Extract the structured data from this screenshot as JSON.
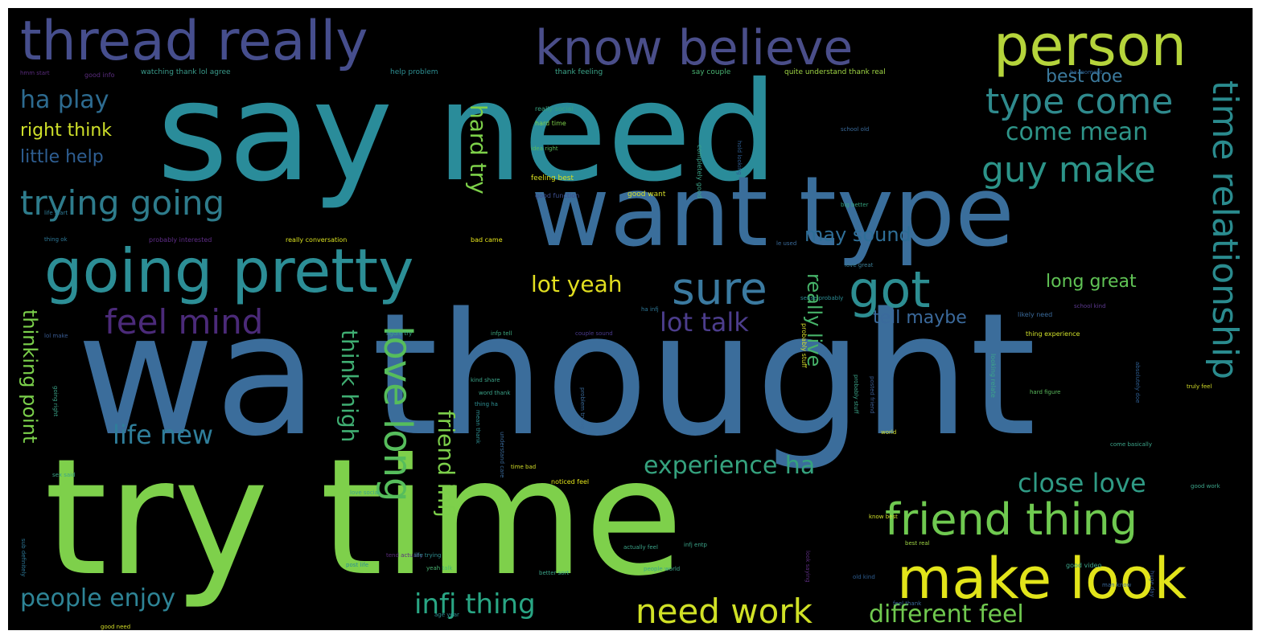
{
  "words": [
    {
      "text": "wa thought",
      "color": "#3b6d9b"
    },
    {
      "text": "try time",
      "color": "#7ed04b"
    },
    {
      "text": "say need",
      "color": "#2a8c9a"
    },
    {
      "text": "want type",
      "color": "#3a6e9b"
    },
    {
      "text": "thread really",
      "color": "#464e8d"
    },
    {
      "text": "know believe",
      "color": "#4a4e8a"
    },
    {
      "text": "person",
      "color": "#b5d43b"
    },
    {
      "text": "going pretty",
      "color": "#2c8e96"
    },
    {
      "text": "friend thing",
      "color": "#6fc950"
    },
    {
      "text": "make look",
      "color": "#e2e41a"
    },
    {
      "text": "trying going",
      "color": "#2e7c8c"
    },
    {
      "text": "sure",
      "color": "#3b7aa0"
    },
    {
      "text": "got",
      "color": "#2d8e92"
    },
    {
      "text": "feel mind",
      "color": "#4b2a79"
    },
    {
      "text": "type come",
      "color": "#2f8a8d"
    },
    {
      "text": "guy make",
      "color": "#2c9489"
    },
    {
      "text": "time relationship",
      "color": "#2a8b8e"
    },
    {
      "text": "love long",
      "color": "#56bd5c"
    },
    {
      "text": "life new",
      "color": "#2f7e9a"
    },
    {
      "text": "experience ha",
      "color": "#35a27e"
    },
    {
      "text": "close love",
      "color": "#2f9b85"
    },
    {
      "text": "need work",
      "color": "#d0e126"
    },
    {
      "text": "infj thing",
      "color": "#29a684"
    },
    {
      "text": "people enjoy",
      "color": "#2e8496"
    },
    {
      "text": "different feel",
      "color": "#70c94f"
    },
    {
      "text": "ha play",
      "color": "#2d6b90"
    },
    {
      "text": "right think",
      "color": "#cfe02a"
    },
    {
      "text": "little help",
      "color": "#2e5e92"
    },
    {
      "text": "come mean",
      "color": "#2e9488"
    },
    {
      "text": "best doe",
      "color": "#3c7a9d"
    },
    {
      "text": "lot talk",
      "color": "#4c3d8c"
    },
    {
      "text": "lot yeah",
      "color": "#e2df20"
    },
    {
      "text": "tell maybe",
      "color": "#3b6a9c"
    },
    {
      "text": "long great",
      "color": "#60c355"
    },
    {
      "text": "may sound",
      "color": "#2f6f98"
    },
    {
      "text": "think high",
      "color": "#3fae72"
    },
    {
      "text": "friend infj",
      "color": "#7ccf4a"
    },
    {
      "text": "hard try",
      "color": "#7dd049"
    },
    {
      "text": "really live",
      "color": "#46b369"
    },
    {
      "text": "thinking point",
      "color": "#7bd04b"
    },
    {
      "text": "watching thank lol agree",
      "color": "#3a9b8b"
    },
    {
      "text": "help problem",
      "color": "#2e8f92"
    },
    {
      "text": "thank feeling",
      "color": "#3ca58a"
    },
    {
      "text": "say couple",
      "color": "#49b372"
    },
    {
      "text": "quite understand thank real",
      "color": "#9ed444"
    },
    {
      "text": "good info",
      "color": "#5a2c7e"
    },
    {
      "text": "ha moment",
      "color": "#2c5d90"
    },
    {
      "text": "really social",
      "color": "#36a07e"
    },
    {
      "text": "hard time",
      "color": "#7ccf4a"
    },
    {
      "text": "idea right",
      "color": "#5ab95c"
    },
    {
      "text": "school old",
      "color": "#3a6a9a"
    },
    {
      "text": "feeling best",
      "color": "#d9e020"
    },
    {
      "text": "good function",
      "color": "#3d4f8f"
    },
    {
      "text": "good want",
      "color": "#d5df29"
    },
    {
      "text": "big better",
      "color": "#35a27e"
    },
    {
      "text": "probably interested",
      "color": "#5f2d88"
    },
    {
      "text": "really conversation",
      "color": "#d9e020"
    },
    {
      "text": "bad came",
      "color": "#e6e51c"
    },
    {
      "text": "le used",
      "color": "#3a6a9a"
    },
    {
      "text": "love great",
      "color": "#3c7f96"
    },
    {
      "text": "sense probably",
      "color": "#2c8e96"
    },
    {
      "text": "ha infj",
      "color": "#2f7a9a"
    },
    {
      "text": "school kind",
      "color": "#5d3a91"
    },
    {
      "text": "likely need",
      "color": "#3a6a9a"
    },
    {
      "text": "thing experience",
      "color": "#cfe02a"
    },
    {
      "text": "figure try",
      "color": "#3ca58a"
    },
    {
      "text": "infp tell",
      "color": "#3da67e"
    },
    {
      "text": "couple sound",
      "color": "#4a3a8c"
    },
    {
      "text": "lol make",
      "color": "#3a5c93"
    },
    {
      "text": "probably stuff",
      "color": "#d5df29"
    },
    {
      "text": "thing ok",
      "color": "#2e7a9a"
    },
    {
      "text": "life start",
      "color": "#2f7e9a"
    },
    {
      "text": "kind share",
      "color": "#3ca58a"
    },
    {
      "text": "word thank",
      "color": "#3ca58a"
    },
    {
      "text": "thing ha",
      "color": "#2e8f92"
    },
    {
      "text": "mean thank",
      "color": "#2e8f92"
    },
    {
      "text": "problem trying",
      "color": "#3a6a9a"
    },
    {
      "text": "posted friend",
      "color": "#3a5c93"
    },
    {
      "text": "looking relate",
      "color": "#3ca58a"
    },
    {
      "text": "hard figure",
      "color": "#5ab95c"
    },
    {
      "text": "absolutely doe",
      "color": "#2e5e92"
    },
    {
      "text": "truly feel",
      "color": "#d5df29"
    },
    {
      "text": "come basically",
      "color": "#3ca58a"
    },
    {
      "text": "time bad",
      "color": "#d5df29"
    },
    {
      "text": "noticed feel",
      "color": "#e2e41a"
    },
    {
      "text": "love social",
      "color": "#3ca58a"
    },
    {
      "text": "know best",
      "color": "#cfe02a"
    },
    {
      "text": "actually feel",
      "color": "#3ca58a"
    },
    {
      "text": "tend actually",
      "color": "#5a2c7e"
    },
    {
      "text": "post life",
      "color": "#2e8f92"
    },
    {
      "text": "life trying",
      "color": "#2e8f92"
    },
    {
      "text": "infj entp",
      "color": "#3ca58a"
    },
    {
      "text": "yeah talk",
      "color": "#49b372"
    },
    {
      "text": "look saying",
      "color": "#5a2c7e"
    },
    {
      "text": "best real",
      "color": "#9ed444"
    },
    {
      "text": "better sort",
      "color": "#3ca58a"
    },
    {
      "text": "old kind",
      "color": "#2e5e92"
    },
    {
      "text": "people world",
      "color": "#3ca58a"
    },
    {
      "text": "good video",
      "color": "#3ca58a"
    },
    {
      "text": "man know",
      "color": "#3a6a9a"
    },
    {
      "text": "huge day",
      "color": "#3a5c93"
    },
    {
      "text": "feel thank",
      "color": "#3a6a9a"
    },
    {
      "text": "age year",
      "color": "#2e8f92"
    },
    {
      "text": "good need",
      "color": "#d5df29"
    },
    {
      "text": "sub definitely",
      "color": "#2e7a9a"
    },
    {
      "text": "sex said",
      "color": "#3ca58a"
    },
    {
      "text": "world",
      "color": "#d5df29"
    },
    {
      "text": "going right",
      "color": "#3ca58a"
    },
    {
      "text": "good work",
      "color": "#3ca58a"
    },
    {
      "text": "completely good",
      "color": "#3ca58a"
    },
    {
      "text": "hold looking",
      "color": "#2e5e92"
    },
    {
      "text": "understand care",
      "color": "#3a6a9a"
    },
    {
      "text": "probably stuff",
      "color": "#3ca58a"
    },
    {
      "text": "hmm start",
      "color": "#5a2c7e"
    }
  ]
}
